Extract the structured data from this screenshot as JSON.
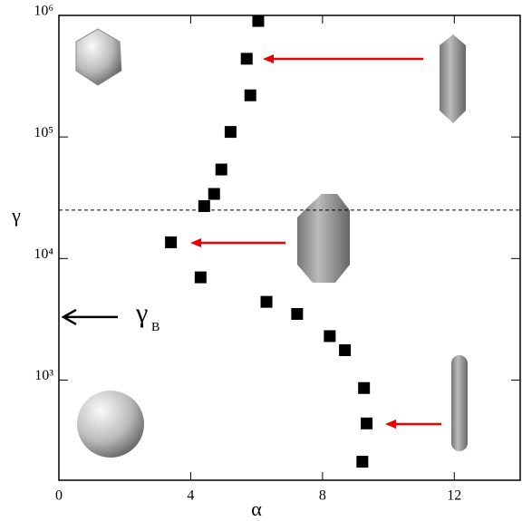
{
  "chart_data": {
    "type": "scatter",
    "x_label": "α",
    "y_label": "γ",
    "x": [
      6.05,
      5.7,
      5.81,
      5.21,
      4.93,
      4.71,
      4.41,
      3.4,
      4.3,
      6.3,
      7.23,
      8.22,
      8.68,
      9.26,
      9.34,
      9.21
    ],
    "series": [
      {
        "color": "#000000",
        "values": [
          900000,
          440000,
          220000,
          110000,
          54000,
          34000,
          27000,
          13600,
          7000,
          4400,
          3500,
          2300,
          1760,
          860,
          440,
          213
        ]
      }
    ],
    "xlim": [
      0,
      14
    ],
    "xticks": [
      0,
      4,
      8,
      12
    ],
    "ylim": [
      150,
      1000000
    ],
    "log_y": true,
    "yticks": [
      {
        "value": 1000,
        "label": "10³"
      },
      {
        "value": 10000,
        "label": "10⁴"
      },
      {
        "value": 100000,
        "label": "10⁵"
      },
      {
        "value": 1000000,
        "label": "10⁶"
      }
    ],
    "hline": 25000,
    "annotation": {
      "text": "γ",
      "subscript": "B",
      "value": 3300
    }
  }
}
